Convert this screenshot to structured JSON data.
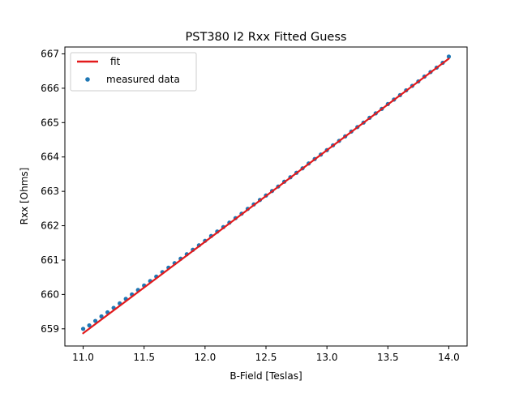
{
  "chart_data": {
    "type": "scatter",
    "title": "PST380 I2 Rxx Fitted Guess",
    "xlabel": "B-Field [Teslas]",
    "ylabel": "Rxx [Ohms]",
    "xlim": [
      10.85,
      14.15
    ],
    "ylim": [
      658.5,
      667.2
    ],
    "xticks": [
      "11.0",
      "11.5",
      "12.0",
      "12.5",
      "13.0",
      "13.5",
      "14.0"
    ],
    "yticks": [
      "659",
      "660",
      "661",
      "662",
      "663",
      "664",
      "665",
      "666",
      "667"
    ],
    "grid": false,
    "legend_position": "top-left",
    "series": [
      {
        "name": "fit",
        "kind": "line",
        "color": "#e31a1c",
        "x": [
          11.0,
          14.0
        ],
        "y": [
          658.87,
          666.86
        ]
      },
      {
        "name": "measured data",
        "kind": "scatter",
        "color": "#1f77b4",
        "x": [
          11.0,
          11.05,
          11.1,
          11.15,
          11.2,
          11.25,
          11.3,
          11.35,
          11.4,
          11.45,
          11.5,
          11.55,
          11.6,
          11.65,
          11.7,
          11.75,
          11.8,
          11.85,
          11.9,
          11.95,
          12.0,
          12.05,
          12.1,
          12.15,
          12.2,
          12.25,
          12.3,
          12.35,
          12.4,
          12.45,
          12.5,
          12.55,
          12.6,
          12.65,
          12.7,
          12.75,
          12.8,
          12.85,
          12.9,
          12.95,
          13.0,
          13.05,
          13.1,
          13.15,
          13.2,
          13.25,
          13.3,
          13.35,
          13.4,
          13.45,
          13.5,
          13.55,
          13.6,
          13.65,
          13.7,
          13.75,
          13.8,
          13.85,
          13.9,
          13.95,
          14.0
        ],
        "y": [
          659.0,
          659.1,
          659.23,
          659.36,
          659.48,
          659.61,
          659.74,
          659.87,
          660.0,
          660.13,
          660.26,
          660.39,
          660.52,
          660.65,
          660.78,
          660.91,
          661.04,
          661.17,
          661.3,
          661.43,
          661.56,
          661.7,
          661.83,
          661.96,
          662.09,
          662.22,
          662.35,
          662.49,
          662.62,
          662.75,
          662.88,
          663.01,
          663.14,
          663.28,
          663.41,
          663.54,
          663.67,
          663.81,
          663.94,
          664.07,
          664.2,
          664.34,
          664.47,
          664.6,
          664.74,
          664.87,
          665.0,
          665.14,
          665.27,
          665.4,
          665.54,
          665.67,
          665.8,
          665.94,
          666.07,
          666.2,
          666.34,
          666.47,
          666.6,
          666.74,
          666.92
        ]
      }
    ]
  }
}
